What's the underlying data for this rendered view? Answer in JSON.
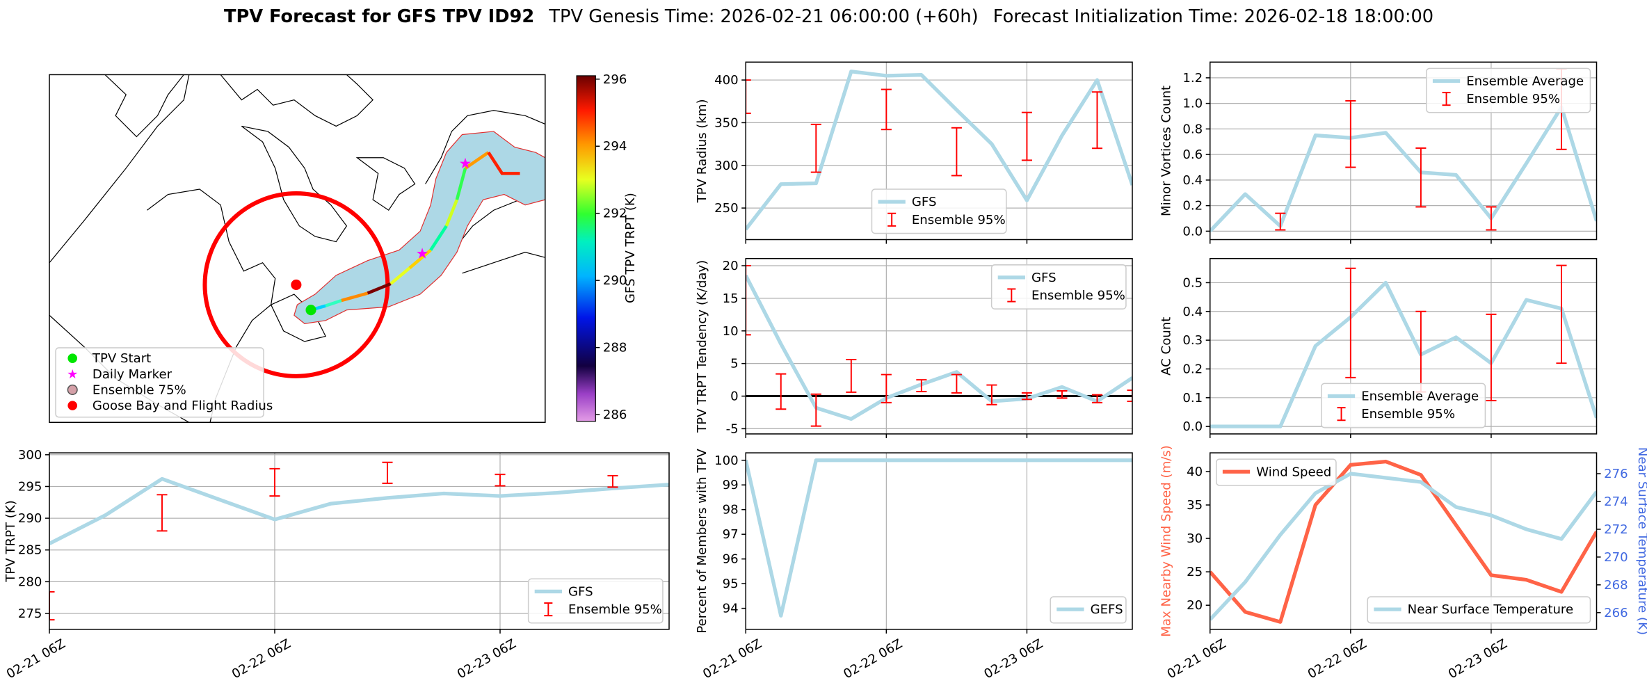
{
  "title": {
    "main": "TPV Forecast for GFS TPV ID92",
    "genesis": "TPV Genesis Time: 2026-02-21 06:00:00 (+60h)",
    "init": "Forecast Initialization Time: 2026-02-18 18:00:00"
  },
  "map": {
    "legend": [
      "TPV Start",
      "Daily Marker",
      "Ensemble 75%",
      "Goose Bay and Flight Radius"
    ],
    "colorbar": {
      "label": "GFS TPV TRPT (K)",
      "lim": [
        285.8,
        296.1
      ],
      "ticks": [
        286,
        288,
        290,
        292,
        294,
        296
      ]
    }
  },
  "chart_data": [
    {
      "type": "line",
      "ylabel": "TPV Radius (km)",
      "x": [
        0,
        6,
        12,
        18,
        24,
        30,
        36,
        42,
        48,
        54,
        60,
        66
      ],
      "xlim": [
        0,
        66
      ],
      "xticks": [
        0,
        24,
        48
      ],
      "ylim": [
        213,
        421
      ],
      "yticks": [
        250,
        300,
        350,
        400
      ],
      "grid": true,
      "legend": "lower center",
      "series": [
        {
          "name": "GFS",
          "color": "#add8e6",
          "values": [
            225,
            278,
            279,
            410,
            405,
            406,
            365,
            325,
            259,
            335,
            400,
            277
          ]
        }
      ],
      "errorbars": {
        "name": "Ensemble 95%",
        "color": "#ff0000",
        "x": [
          0,
          12,
          24,
          36,
          48,
          60
        ],
        "low": [
          361,
          292,
          342,
          288,
          306,
          320
        ],
        "high": [
          400,
          348,
          389,
          344,
          362,
          386
        ]
      }
    },
    {
      "type": "line",
      "ylabel": "Minor Vortices Count",
      "x": [
        0,
        6,
        12,
        18,
        24,
        30,
        36,
        42,
        48,
        54,
        60,
        66
      ],
      "xlim": [
        0,
        66
      ],
      "xticks": [
        0,
        24,
        48
      ],
      "ylim": [
        -0.066,
        1.323
      ],
      "yticks": [
        {
          "value": 0,
          "label": "0.0"
        },
        0.2,
        0.4,
        0.6,
        0.8,
        {
          "value": 1,
          "label": "1.0"
        },
        1.2
      ],
      "grid": true,
      "legend": "upper right",
      "series": [
        {
          "name": "Ensemble Average",
          "color": "#add8e6",
          "values": [
            0.0,
            0.29,
            0.04,
            0.75,
            0.73,
            0.77,
            0.46,
            0.44,
            0.1,
            0.53,
            0.97,
            0.08
          ]
        }
      ],
      "errorbars": {
        "name": "Ensemble 95%",
        "color": "#ff0000",
        "x": [
          12,
          24,
          36,
          48,
          60
        ],
        "low": [
          0.01,
          0.5,
          0.19,
          0.01,
          0.64
        ],
        "high": [
          0.14,
          1.02,
          0.65,
          0.19,
          1.27
        ]
      }
    },
    {
      "type": "line",
      "ylabel": "TPV TRPT Tendency (K/day)",
      "x": [
        0,
        6,
        12,
        18,
        24,
        30,
        36,
        42,
        48,
        54,
        60,
        66
      ],
      "xlim": [
        0,
        66
      ],
      "xticks": [
        0,
        24,
        48
      ],
      "ylim": [
        -5.8,
        21.1
      ],
      "yticks": [
        -5,
        0,
        5,
        10,
        15,
        20
      ],
      "grid": true,
      "legend": "upper right",
      "hline": 0,
      "series": [
        {
          "name": "GFS",
          "color": "#add8e6",
          "values": [
            18.5,
            8,
            -1.8,
            -3.5,
            -0.3,
            1.8,
            3.7,
            -0.8,
            -0.4,
            1.4,
            -0.8,
            2.8
          ]
        }
      ],
      "errorbars": {
        "name": "Ensemble 95%",
        "color": "#ff0000",
        "x": [
          0,
          6,
          12,
          18,
          24,
          30,
          36,
          42,
          48,
          54,
          60,
          66
        ],
        "low": [
          9.4,
          -2,
          -4.6,
          0.6,
          -1,
          0.7,
          0.5,
          -1.3,
          -0.5,
          -0.3,
          -1,
          -0.8
        ],
        "high": [
          20,
          3.4,
          0.3,
          5.6,
          3.3,
          2.5,
          3.3,
          1.7,
          0.5,
          0.8,
          0.2,
          0.9
        ]
      }
    },
    {
      "type": "line",
      "ylabel": "AC Count",
      "x": [
        0,
        6,
        12,
        18,
        24,
        30,
        36,
        42,
        48,
        54,
        60,
        66
      ],
      "xlim": [
        0,
        66
      ],
      "xticks": [
        0,
        24,
        48
      ],
      "ylim": [
        -0.026,
        0.584
      ],
      "yticks": [
        {
          "value": 0,
          "label": "0.0"
        },
        0.1,
        0.2,
        0.3,
        0.4,
        0.5
      ],
      "grid": true,
      "legend": "lower center",
      "series": [
        {
          "name": "Ensemble Average",
          "color": "#add8e6",
          "values": [
            0,
            0,
            0,
            0.28,
            0.38,
            0.5,
            0.25,
            0.31,
            0.22,
            0.44,
            0.41,
            0.03
          ]
        }
      ],
      "errorbars": {
        "name": "Ensemble 95%",
        "color": "#ff0000",
        "x": [
          24,
          36,
          48,
          60
        ],
        "low": [
          0.17,
          0.12,
          0.09,
          0.22
        ],
        "high": [
          0.55,
          0.4,
          0.39,
          0.56
        ]
      }
    },
    {
      "type": "line",
      "ylabel": "TPV TRPT (K)",
      "x": [
        0,
        6,
        12,
        18,
        24,
        30,
        36,
        42,
        48,
        54,
        60,
        66
      ],
      "xlim": [
        0,
        66
      ],
      "xticks": [
        {
          "value": 0,
          "label": "02-21 06Z"
        },
        {
          "value": 24,
          "label": "02-22 06Z"
        },
        {
          "value": 48,
          "label": "02-23 06Z"
        }
      ],
      "ylim": [
        272.5,
        300.3
      ],
      "yticks": [
        275,
        280,
        285,
        290,
        295,
        300
      ],
      "grid": true,
      "legend": "lower right",
      "series": [
        {
          "name": "GFS",
          "color": "#add8e6",
          "values": [
            286,
            290.5,
            296.2,
            293,
            289.8,
            292.3,
            293.2,
            293.9,
            293.5,
            294,
            294.7,
            295.3
          ]
        }
      ],
      "errorbars": {
        "name": "Ensemble 95%",
        "color": "#ff0000",
        "x": [
          0,
          12,
          24,
          36,
          48,
          60
        ],
        "low": [
          274,
          288,
          293.5,
          295.5,
          295.1,
          294.9
        ],
        "high": [
          278.4,
          293.7,
          297.8,
          298.8,
          296.9,
          296.7
        ]
      }
    },
    {
      "type": "line",
      "ylabel": "Percent of Members with TPV",
      "x": [
        0,
        6,
        12,
        18,
        24,
        30,
        36,
        42,
        48,
        54,
        60,
        66
      ],
      "xlim": [
        0,
        66
      ],
      "xticks": [
        {
          "value": 0,
          "label": "02-21 06Z"
        },
        {
          "value": 24,
          "label": "02-22 06Z"
        },
        {
          "value": 48,
          "label": "02-23 06Z"
        }
      ],
      "ylim": [
        93.15,
        100.3
      ],
      "yticks": [
        94,
        95,
        96,
        97,
        98,
        99,
        100
      ],
      "grid": "x",
      "legend": "lower right",
      "series": [
        {
          "name": "GEFS",
          "color": "#add8e6",
          "values": [
            100,
            93.7,
            100,
            100,
            100,
            100,
            100,
            100,
            100,
            100,
            100,
            100
          ]
        }
      ]
    },
    {
      "type": "line",
      "ylabel": "Max Nearby Wind Speed (m/s)",
      "ylabel_color": "#ff6347",
      "y2label": "Near Surface Temperature (K)",
      "y2label_color": "#4169e1",
      "x": [
        0,
        6,
        12,
        18,
        24,
        30,
        36,
        42,
        48,
        54,
        60,
        66
      ],
      "xlim": [
        0,
        66
      ],
      "xticks": [
        {
          "value": 0,
          "label": "02-21 06Z"
        },
        {
          "value": 24,
          "label": "02-22 06Z"
        },
        {
          "value": 48,
          "label": "02-23 06Z"
        }
      ],
      "ylim": [
        16.4,
        42.8
      ],
      "yticks": [
        20,
        25,
        30,
        35,
        40
      ],
      "y2lim": [
        264.8,
        277.5
      ],
      "y2ticks": [
        266,
        268,
        270,
        272,
        274,
        276
      ],
      "grid": "x",
      "series": [
        {
          "name": "Wind Speed",
          "color": "#ff6347",
          "legend": "upper left",
          "values": [
            25,
            19,
            17.5,
            35,
            41,
            41.5,
            39.5,
            32,
            24.5,
            23.8,
            22,
            31
          ]
        },
        {
          "name": "Near Surface Temperature",
          "color": "#add8e6",
          "axis": "y2",
          "legend": "lower right",
          "values": [
            265.5,
            268.2,
            271.6,
            274.6,
            276,
            275.7,
            275.4,
            273.6,
            273,
            272,
            271.3,
            274.7
          ]
        }
      ]
    }
  ]
}
